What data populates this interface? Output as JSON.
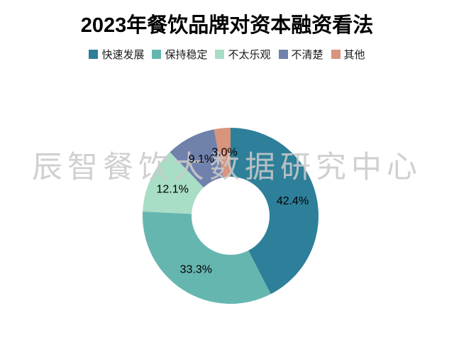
{
  "title": {
    "text": "2023年餐饮品牌对资本融资看法"
  },
  "watermark": {
    "text": "辰智餐饮大数据研究中心"
  },
  "chart_data": {
    "type": "pie",
    "subtype": "donut",
    "title": "2023年餐饮品牌对资本融资看法",
    "categories": [
      "快速发展",
      "保持稳定",
      "不太乐观",
      "不清楚",
      "其他"
    ],
    "values": [
      42.4,
      33.3,
      12.1,
      9.1,
      3.0
    ],
    "labels": [
      "42.4%",
      "33.3%",
      "12.1%",
      "9.1%",
      "3.0%"
    ],
    "colors": [
      "#2E7F99",
      "#66B6B0",
      "#A8DDC6",
      "#7081AC",
      "#D9947E"
    ],
    "label_color": "#000000",
    "start_angle_deg": 0,
    "direction": "clockwise",
    "inner_radius_ratio": 0.44,
    "legend_position": "top",
    "background": "#ffffff"
  }
}
